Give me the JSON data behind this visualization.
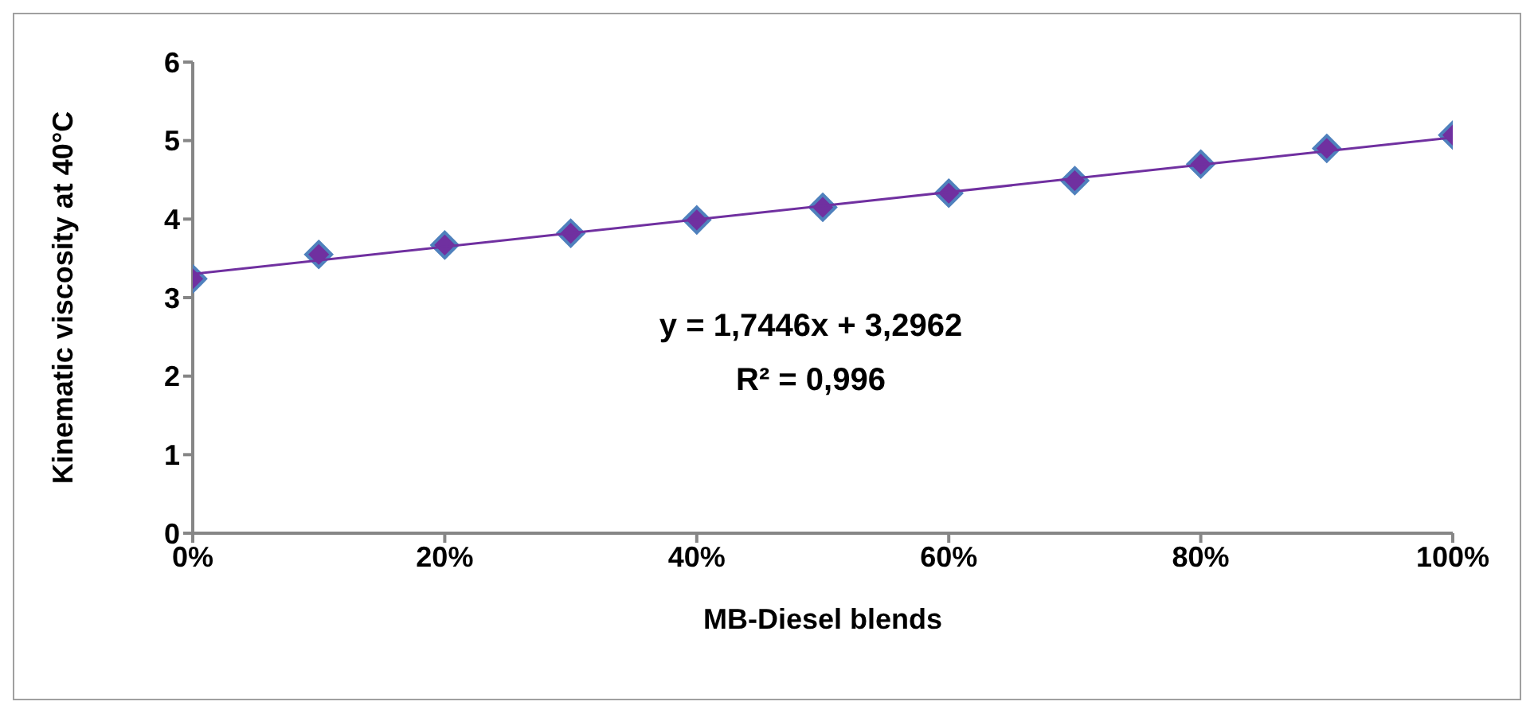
{
  "chart_data": {
    "type": "scatter",
    "xlabel": "MB-Diesel blends",
    "ylabel": "Kinematic viscosity at 40°C",
    "xlim": [
      0,
      100
    ],
    "xticks": [
      {
        "value": 0,
        "label": "0%"
      },
      {
        "value": 20,
        "label": "20%"
      },
      {
        "value": 40,
        "label": "40%"
      },
      {
        "value": 60,
        "label": "60%"
      },
      {
        "value": 80,
        "label": "80%"
      },
      {
        "value": 100,
        "label": "100%"
      }
    ],
    "ylim": [
      0,
      6
    ],
    "yticks": [
      0,
      1,
      2,
      3,
      4,
      5,
      6
    ],
    "annotations": [
      "y = 1,7446x + 3,2962",
      "R² = 0,996"
    ],
    "series": [
      {
        "marker": "diamond",
        "color": "#7030a0",
        "x": [
          0,
          10,
          20,
          30,
          40,
          50,
          60,
          70,
          80,
          90,
          100
        ],
        "values": [
          3.24,
          3.55,
          3.67,
          3.82,
          3.99,
          4.15,
          4.33,
          4.49,
          4.7,
          4.9,
          5.07
        ]
      },
      {
        "type": "line",
        "marker": "none",
        "line_style": "solid",
        "color": "#7030a0",
        "x": [
          0,
          100
        ],
        "values": [
          3.3,
          5.04
        ]
      }
    ]
  }
}
